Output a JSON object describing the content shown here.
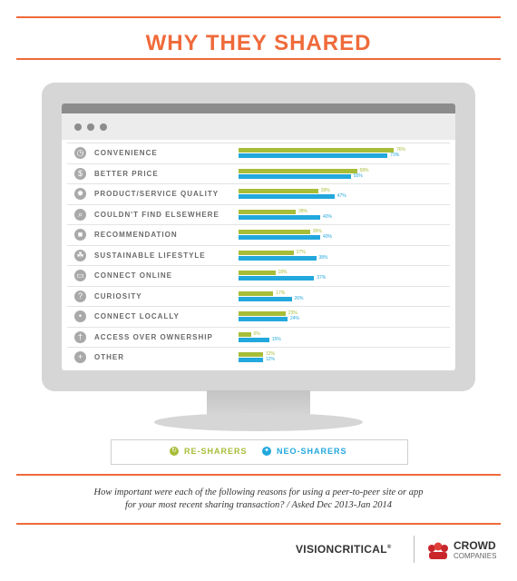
{
  "header": {
    "title": "WHY THEY SHARED"
  },
  "chart_data": {
    "type": "bar",
    "title": "WHY THEY SHARED",
    "categories": [
      "CONVENIENCE",
      "BETTER PRICE",
      "PRODUCT/SERVICE QUALITY",
      "COULDN'T FIND ELSEWHERE",
      "RECOMMENDATION",
      "SUSTAINABLE LIFESTYLE",
      "CONNECT ONLINE",
      "CURIOSITY",
      "CONNECT LOCALLY",
      "ACCESS OVER OWNERSHIP",
      "OTHER"
    ],
    "category_icons": [
      "clock-icon",
      "dollar-tag-icon",
      "star-burst-icon",
      "magnifier-icon",
      "speech-bubble-icon",
      "leaf-icon",
      "monitor-icon",
      "question-icon",
      "location-pin-icon",
      "key-icon",
      "plus-icon"
    ],
    "series": [
      {
        "name": "RE-SHARERS",
        "color": "#a7bd38",
        "values": [
          76,
          58,
          39,
          28,
          35,
          27,
          18,
          17,
          23,
          6,
          12
        ],
        "labels": [
          "76%",
          "58%",
          "39%",
          "28%",
          "35%",
          "27%",
          "18%",
          "17%",
          "23%",
          "6%",
          "12%"
        ]
      },
      {
        "name": "NEO-SHARERS",
        "color": "#22a8dd",
        "values": [
          73,
          55,
          47,
          40,
          40,
          38,
          37,
          26,
          24,
          15,
          12
        ],
        "labels": [
          "73%",
          "55%",
          "47%",
          "40%",
          "40%",
          "38%",
          "37%",
          "26%",
          "24%",
          "15%",
          "12%"
        ]
      }
    ],
    "xlim": [
      0,
      100
    ],
    "legend_position": "bottom"
  },
  "legend": {
    "items": [
      {
        "label": "RE-SHARERS",
        "color": "#a7bd38",
        "icon": "recycle-icon"
      },
      {
        "label": "NEO-SHARERS",
        "color": "#22a8dd",
        "icon": "new-share-icon"
      }
    ]
  },
  "footer": {
    "question_line1": "How important were each of the following reasons for using a peer-to-peer site or app",
    "question_line2": "for your most recent sharing transaction? / Asked Dec 2013-Jan 2014",
    "logo_visioncritical": "VISIONCRITICAL",
    "logo_crowd_line1": "CROWD",
    "logo_crowd_line2": "COMPANIES"
  },
  "colors": {
    "accent": "#ef6a3a",
    "green": "#a7bd38",
    "blue": "#22a8dd"
  }
}
